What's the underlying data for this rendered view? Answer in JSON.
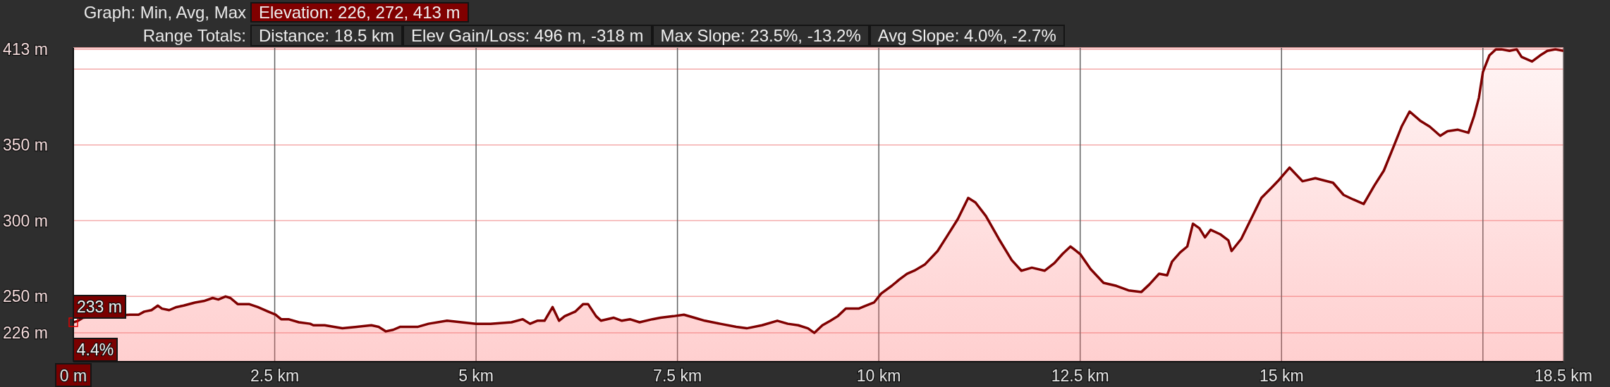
{
  "chart_data": {
    "type": "area",
    "annotations": [
      "Graph: Min, Avg, Max",
      "Elevation: 226, 272, 413 m",
      "Range Totals:",
      "Distance: 18.5 km",
      "Elev Gain/Loss: 496 m, -318 m",
      "Max Slope: 23.5%, -13.2%",
      "Avg Slope: 4.0%, -2.7%",
      {
        "text": "233 m",
        "x": 0,
        "y": 233
      },
      {
        "text": "4.4%",
        "x": 0
      }
    ],
    "x": [
      0,
      0.06,
      0.12,
      0.7,
      0.81,
      0.88,
      0.97,
      1.05,
      1.1,
      1.19,
      1.28,
      1.37,
      1.51,
      1.62,
      1.73,
      1.8,
      1.89,
      1.95,
      2.04,
      2.18,
      2.29,
      2.42,
      2.51,
      2.58,
      2.67,
      2.8,
      2.94,
      2.98,
      3.12,
      3.34,
      3.52,
      3.7,
      3.79,
      3.88,
      3.97,
      4.06,
      4.28,
      4.41,
      4.64,
      4.82,
      5.0,
      5.18,
      5.44,
      5.58,
      5.67,
      5.76,
      5.85,
      5.95,
      6.03,
      6.1,
      6.23,
      6.33,
      6.39,
      6.49,
      6.55,
      6.71,
      6.81,
      6.91,
      7.03,
      7.19,
      7.29,
      7.45,
      7.58,
      7.71,
      7.84,
      8.03,
      8.23,
      8.36,
      8.55,
      8.74,
      8.87,
      9.0,
      9.12,
      9.2,
      9.3,
      9.4,
      9.49,
      9.59,
      9.75,
      9.84,
      9.94,
      10.03,
      10.16,
      10.25,
      10.35,
      10.44,
      10.57,
      10.73,
      10.85,
      10.98,
      11.11,
      11.2,
      11.33,
      11.49,
      11.65,
      11.77,
      11.9,
      12.06,
      12.18,
      12.28,
      12.38,
      12.5,
      12.63,
      12.79,
      12.95,
      13.1,
      13.26,
      13.36,
      13.48,
      13.58,
      13.64,
      13.74,
      13.83,
      13.9,
      13.98,
      14.05,
      14.12,
      14.24,
      14.34,
      14.38,
      14.5,
      14.62,
      14.75,
      14.88,
      14.97,
      15.1,
      15.26,
      15.42,
      15.64,
      15.77,
      15.89,
      16.02,
      16.15,
      16.27,
      16.4,
      16.49,
      16.59,
      16.72,
      16.84,
      16.97,
      17.06,
      17.19,
      17.32,
      17.39,
      17.45,
      17.5,
      17.58,
      17.66,
      17.73,
      17.83,
      17.92,
      17.98,
      18.11,
      18.21,
      18.3,
      18.4,
      18.5
    ],
    "values": [
      233,
      234,
      236,
      238,
      238,
      240,
      241,
      244,
      242,
      241,
      243,
      244,
      246,
      247,
      249,
      248,
      250,
      249,
      245,
      245,
      243,
      240,
      238,
      235,
      235,
      233,
      232,
      231,
      231,
      229,
      230,
      231,
      230,
      227,
      228,
      230,
      230,
      232,
      234,
      233,
      232,
      232,
      233,
      235,
      232,
      234,
      234,
      243,
      234,
      237,
      240,
      245,
      245,
      237,
      234,
      236,
      234,
      235,
      233,
      235,
      236,
      237,
      238,
      236,
      234,
      232,
      230,
      229,
      231,
      234,
      232,
      231,
      229,
      226,
      231,
      234,
      237,
      242,
      242,
      244,
      246,
      252,
      257,
      261,
      265,
      267,
      271,
      280,
      290,
      301,
      315,
      312,
      303,
      288,
      274,
      267,
      269,
      267,
      272,
      278,
      283,
      278,
      268,
      259,
      257,
      254,
      253,
      258,
      265,
      264,
      273,
      279,
      283,
      298,
      295,
      289,
      294,
      291,
      287,
      280,
      288,
      301,
      315,
      322,
      327,
      335,
      326,
      328,
      325,
      317,
      314,
      311,
      323,
      333,
      350,
      362,
      372,
      366,
      362,
      356,
      359,
      360,
      358,
      369,
      381,
      398,
      409,
      413,
      413,
      412,
      413,
      408,
      405,
      409,
      412,
      413,
      412
    ],
    "color": "#7f0000",
    "xlim": [
      0,
      18.5
    ],
    "xticks": [
      {
        "value": 0,
        "label": "0 m"
      },
      {
        "value": 2.5,
        "label": "2.5 km"
      },
      {
        "value": 5,
        "label": "5 km"
      },
      {
        "value": 7.5,
        "label": "7.5 km"
      },
      {
        "value": 10,
        "label": "10 km"
      },
      {
        "value": 12.5,
        "label": "12.5 km"
      },
      {
        "value": 15,
        "label": "15 km"
      },
      {
        "value": 17.5,
        "label": null
      },
      {
        "value": 18.5,
        "label": "18.5 km"
      }
    ],
    "ylim": [
      207,
      414
    ],
    "yticks": [
      {
        "value": 226,
        "label": "226 m"
      },
      {
        "value": 250,
        "label": "250 m"
      },
      {
        "value": 300,
        "label": "300 m"
      },
      {
        "value": 350,
        "label": "350 m"
      },
      {
        "value": 400,
        "label": null
      },
      {
        "value": 413,
        "label": "413 m"
      }
    ],
    "grid": true
  }
}
